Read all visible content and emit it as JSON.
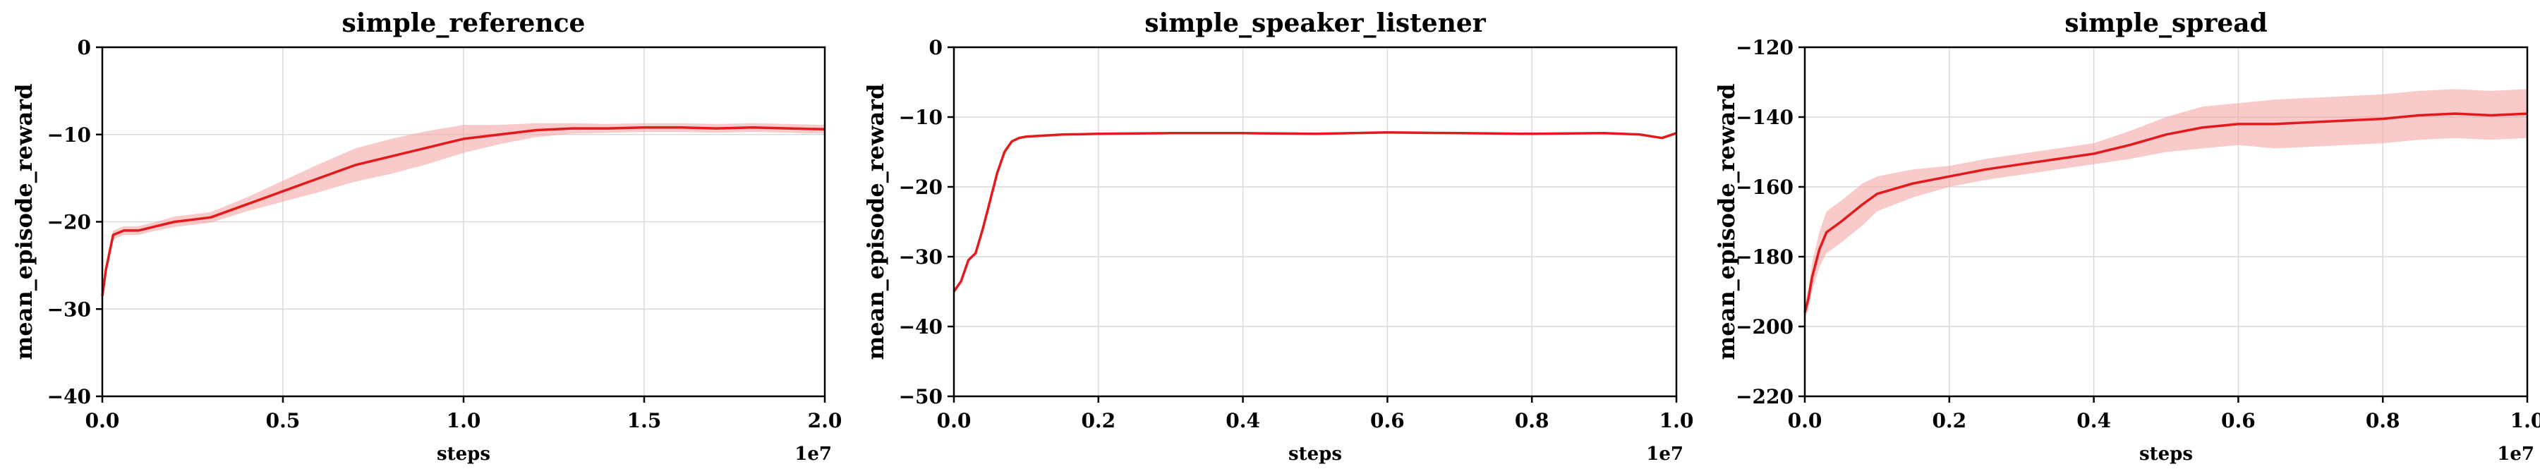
{
  "colors": {
    "line": "#e31a1c",
    "band": "#f4a6a6",
    "grid": "#d9d9d9",
    "axis": "#000000"
  },
  "chart_data": [
    {
      "type": "line",
      "title": "simple_reference",
      "xlabel": "steps",
      "ylabel": "mean_episode_reward",
      "x_offset_label": "1e7",
      "xlim": [
        0,
        2.0
      ],
      "ylim": [
        -40,
        0
      ],
      "xticks": [
        0.0,
        0.5,
        1.0,
        1.5,
        2.0
      ],
      "xtick_labels": [
        "0.0",
        "0.5",
        "1.0",
        "1.5",
        "2.0"
      ],
      "yticks": [
        -40,
        -30,
        -20,
        -10,
        0
      ],
      "ytick_labels": [
        "−40",
        "−30",
        "−20",
        "−10",
        "0"
      ],
      "grid": true,
      "series": [
        {
          "x": [
            0.0,
            0.01,
            0.03,
            0.06,
            0.1,
            0.15,
            0.2,
            0.3,
            0.4,
            0.5,
            0.6,
            0.7,
            0.8,
            0.9,
            1.0,
            1.1,
            1.2,
            1.3,
            1.4,
            1.5,
            1.6,
            1.7,
            1.8,
            1.9,
            2.0
          ],
          "y": [
            -28.5,
            -25.5,
            -21.5,
            -21.0,
            -21.0,
            -20.5,
            -20.0,
            -19.5,
            -18.0,
            -16.5,
            -15.0,
            -13.5,
            -12.5,
            -11.5,
            -10.5,
            -10.0,
            -9.5,
            -9.3,
            -9.3,
            -9.2,
            -9.2,
            -9.3,
            -9.2,
            -9.3,
            -9.4
          ],
          "band": [
            0.3,
            0.4,
            0.5,
            0.5,
            0.5,
            0.5,
            0.6,
            0.6,
            0.8,
            1.2,
            1.6,
            1.9,
            2.0,
            1.9,
            1.6,
            1.1,
            0.8,
            0.6,
            0.5,
            0.5,
            0.5,
            0.5,
            0.5,
            0.5,
            0.5
          ]
        }
      ]
    },
    {
      "type": "line",
      "title": "simple_speaker_listener",
      "xlabel": "steps",
      "ylabel": "mean_episode_reward",
      "x_offset_label": "1e7",
      "xlim": [
        0,
        1.0
      ],
      "ylim": [
        -50,
        0
      ],
      "xticks": [
        0.0,
        0.2,
        0.4,
        0.6,
        0.8,
        1.0
      ],
      "xtick_labels": [
        "0.0",
        "0.2",
        "0.4",
        "0.6",
        "0.8",
        "1.0"
      ],
      "yticks": [
        -50,
        -40,
        -30,
        -20,
        -10,
        0
      ],
      "ytick_labels": [
        "−50",
        "−40",
        "−30",
        "−20",
        "−10",
        "0"
      ],
      "grid": true,
      "series": [
        {
          "x": [
            0.0,
            0.01,
            0.02,
            0.03,
            0.04,
            0.05,
            0.06,
            0.07,
            0.08,
            0.09,
            0.1,
            0.15,
            0.2,
            0.3,
            0.4,
            0.5,
            0.6,
            0.7,
            0.8,
            0.9,
            0.95,
            0.98,
            1.0
          ],
          "y": [
            -35.0,
            -33.5,
            -30.5,
            -29.5,
            -26.0,
            -22.0,
            -18.0,
            -15.0,
            -13.5,
            -13.0,
            -12.8,
            -12.5,
            -12.4,
            -12.3,
            -12.3,
            -12.4,
            -12.2,
            -12.3,
            -12.4,
            -12.3,
            -12.5,
            -13.0,
            -12.3
          ]
        }
      ]
    },
    {
      "type": "line",
      "title": "simple_spread",
      "xlabel": "steps",
      "ylabel": "mean_episode_reward",
      "x_offset_label": "1e7",
      "xlim": [
        0,
        1.0
      ],
      "ylim": [
        -220,
        -120
      ],
      "xticks": [
        0.0,
        0.2,
        0.4,
        0.6,
        0.8,
        1.0
      ],
      "xtick_labels": [
        "0.0",
        "0.2",
        "0.4",
        "0.6",
        "0.8",
        "1.0"
      ],
      "yticks": [
        -220,
        -200,
        -180,
        -160,
        -140,
        -120
      ],
      "ytick_labels": [
        "−220",
        "−200",
        "−180",
        "−160",
        "−140",
        "−120"
      ],
      "grid": true,
      "series": [
        {
          "x": [
            0.0,
            0.005,
            0.01,
            0.02,
            0.03,
            0.05,
            0.08,
            0.1,
            0.15,
            0.2,
            0.25,
            0.3,
            0.35,
            0.4,
            0.45,
            0.5,
            0.55,
            0.6,
            0.65,
            0.7,
            0.75,
            0.8,
            0.85,
            0.9,
            0.95,
            1.0
          ],
          "y": [
            -196,
            -192,
            -186,
            -178,
            -173,
            -170,
            -165,
            -162,
            -159,
            -157,
            -155,
            -153.5,
            -152,
            -150.5,
            -148,
            -145,
            -143,
            -142,
            -142,
            -141.5,
            -141,
            -140.5,
            -139.5,
            -139,
            -139.5,
            -139
          ],
          "band": [
            2,
            3,
            4,
            5,
            6,
            6,
            6,
            5,
            4,
            3,
            3,
            3,
            3,
            3,
            4,
            5,
            6,
            6,
            7,
            7,
            7,
            7,
            7,
            7,
            7,
            7
          ]
        }
      ]
    }
  ]
}
